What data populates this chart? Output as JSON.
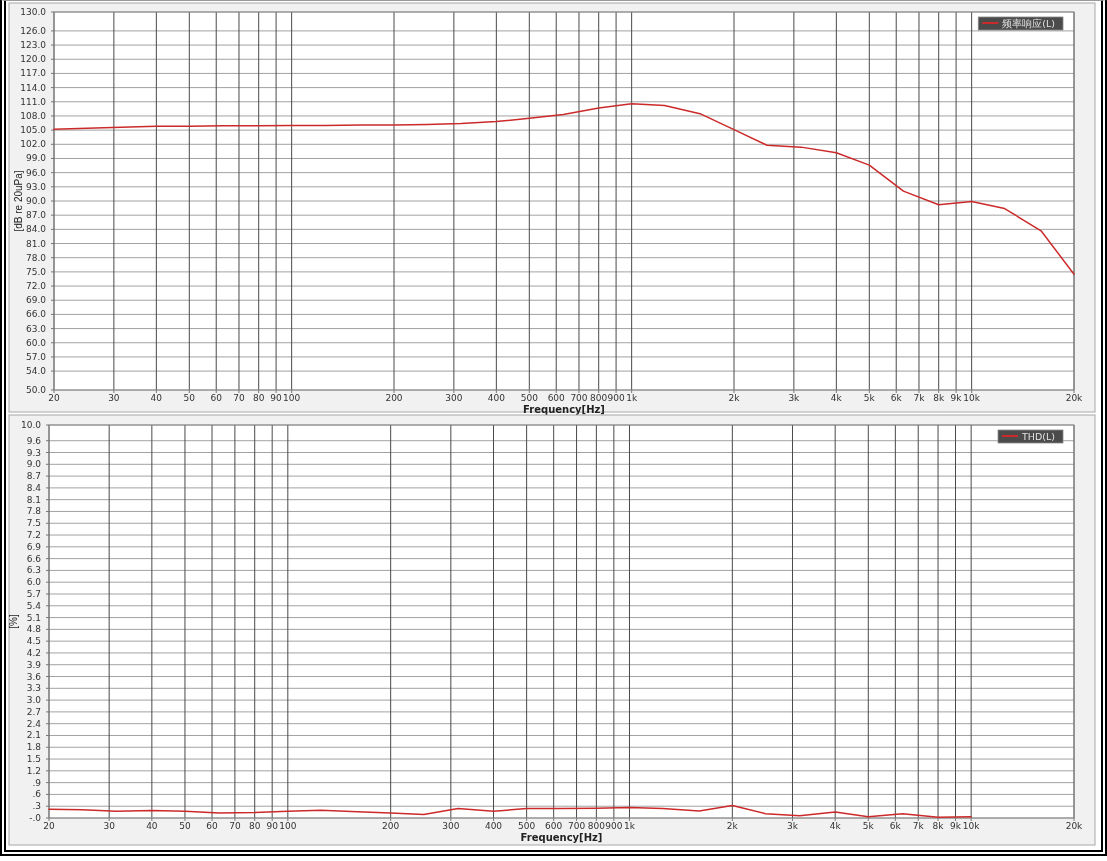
{
  "chart_data": [
    {
      "type": "line",
      "xlabel": "Frequency[Hz]",
      "ylabel": "[dB re 20uPa]",
      "log": "x",
      "grid": true,
      "legend": "top right",
      "x": [
        20,
        25,
        31.5,
        40,
        50,
        63,
        80,
        100,
        125,
        160,
        200,
        250,
        315,
        400,
        500,
        630,
        800,
        1000,
        1250,
        1600,
        2000,
        2500,
        3150,
        4000,
        5000,
        6300,
        8000,
        10000,
        12500,
        16000,
        20000
      ],
      "series": [
        {
          "name": "频率响应(L)",
          "color": "#cc2a2a",
          "values": [
            105.2,
            105.4,
            105.6,
            105.8,
            105.8,
            105.9,
            105.9,
            106.0,
            106.0,
            106.1,
            106.1,
            106.2,
            106.4,
            106.8,
            107.5,
            108.3,
            109.7,
            110.6,
            110.2,
            108.4,
            105.1,
            101.8,
            101.4,
            100.2,
            97.6,
            92.1,
            89.2,
            89.9,
            88.4,
            83.7,
            74.5
          ]
        }
      ],
      "xlim": [
        20,
        20000
      ],
      "xticks": [
        20,
        30,
        40,
        50,
        60,
        70,
        80,
        90,
        100,
        200,
        300,
        400,
        500,
        600,
        700,
        800,
        900,
        {
          "value": 1000,
          "label": "1k"
        },
        {
          "value": 2000,
          "label": "2k"
        },
        {
          "value": 3000,
          "label": "3k"
        },
        {
          "value": 4000,
          "label": "4k"
        },
        {
          "value": 5000,
          "label": "5k"
        },
        {
          "value": 6000,
          "label": "6k"
        },
        {
          "value": 7000,
          "label": "7k"
        },
        {
          "value": 8000,
          "label": "8k"
        },
        {
          "value": 9000,
          "label": "9k"
        },
        {
          "value": 10000,
          "label": "10k"
        },
        {
          "value": 20000,
          "label": "20k"
        }
      ],
      "ylim": [
        50,
        130
      ],
      "yticks": [
        {
          "value": 50,
          "label": "50.0"
        },
        {
          "value": 54,
          "label": "54.0"
        },
        {
          "value": 57,
          "label": "57.0"
        },
        {
          "value": 60,
          "label": "60.0"
        },
        {
          "value": 63,
          "label": "63.0"
        },
        {
          "value": 66,
          "label": "66.0"
        },
        {
          "value": 69,
          "label": "69.0"
        },
        {
          "value": 72,
          "label": "72.0"
        },
        {
          "value": 75,
          "label": "75.0"
        },
        {
          "value": 78,
          "label": "78.0"
        },
        {
          "value": 81,
          "label": "81.0"
        },
        {
          "value": 84,
          "label": "84.0"
        },
        {
          "value": 87,
          "label": "87.0"
        },
        {
          "value": 90,
          "label": "90.0"
        },
        {
          "value": 93,
          "label": "93.0"
        },
        {
          "value": 96,
          "label": "96.0"
        },
        {
          "value": 99,
          "label": "99.0"
        },
        {
          "value": 102,
          "label": "102.0"
        },
        {
          "value": 105,
          "label": "105.0"
        },
        {
          "value": 108,
          "label": "108.0"
        },
        {
          "value": 111,
          "label": "111.0"
        },
        {
          "value": 114,
          "label": "114.0"
        },
        {
          "value": 117,
          "label": "117.0"
        },
        {
          "value": 120,
          "label": "120.0"
        },
        {
          "value": 123,
          "label": "123.0"
        },
        {
          "value": 126,
          "label": "126.0"
        },
        {
          "value": 130,
          "label": "130.0"
        }
      ]
    },
    {
      "type": "line",
      "xlabel": "Frequency[Hz]",
      "ylabel": "[%]",
      "log": "x",
      "grid": true,
      "legend": "top right",
      "x": [
        20,
        25,
        31.5,
        40,
        50,
        63,
        80,
        100,
        125,
        160,
        200,
        250,
        315,
        400,
        500,
        630,
        800,
        1000,
        1250,
        1600,
        2000,
        2500,
        3150,
        4000,
        5000,
        6300,
        8000,
        10000
      ],
      "series": [
        {
          "name": "THD(L)",
          "color": "#cc2a2a",
          "values": [
            0.22,
            0.21,
            0.17,
            0.19,
            0.17,
            0.13,
            0.14,
            0.17,
            0.2,
            0.16,
            0.13,
            0.09,
            0.24,
            0.17,
            0.24,
            0.24,
            0.25,
            0.27,
            0.24,
            0.18,
            0.32,
            0.11,
            0.06,
            0.15,
            0.03,
            0.11,
            0.02,
            0.03
          ]
        }
      ],
      "xlim": [
        20,
        20000
      ],
      "xticks": [
        20,
        30,
        40,
        50,
        60,
        70,
        80,
        90,
        100,
        200,
        300,
        400,
        500,
        600,
        700,
        800,
        900,
        {
          "value": 1000,
          "label": "1k"
        },
        {
          "value": 2000,
          "label": "2k"
        },
        {
          "value": 3000,
          "label": "3k"
        },
        {
          "value": 4000,
          "label": "4k"
        },
        {
          "value": 5000,
          "label": "5k"
        },
        {
          "value": 6000,
          "label": "6k"
        },
        {
          "value": 7000,
          "label": "7k"
        },
        {
          "value": 8000,
          "label": "8k"
        },
        {
          "value": 9000,
          "label": "9k"
        },
        {
          "value": 10000,
          "label": "10k"
        },
        {
          "value": 20000,
          "label": "20k"
        }
      ],
      "ylim": [
        0,
        10
      ],
      "yticks": [
        {
          "value": 0,
          "label": "-.0"
        },
        {
          "value": 0.3,
          "label": ".3"
        },
        {
          "value": 0.6,
          "label": ".6"
        },
        {
          "value": 0.9,
          "label": ".9"
        },
        {
          "value": 1.2,
          "label": "1.2"
        },
        {
          "value": 1.5,
          "label": "1.5"
        },
        {
          "value": 1.8,
          "label": "1.8"
        },
        {
          "value": 2.1,
          "label": "2.1"
        },
        {
          "value": 2.4,
          "label": "2.4"
        },
        {
          "value": 2.7,
          "label": "2.7"
        },
        {
          "value": 3.0,
          "label": "3.0"
        },
        {
          "value": 3.3,
          "label": "3.3"
        },
        {
          "value": 3.6,
          "label": "3.6"
        },
        {
          "value": 3.9,
          "label": "3.9"
        },
        {
          "value": 4.2,
          "label": "4.2"
        },
        {
          "value": 4.5,
          "label": "4.5"
        },
        {
          "value": 4.8,
          "label": "4.8"
        },
        {
          "value": 5.1,
          "label": "5.1"
        },
        {
          "value": 5.4,
          "label": "5.4"
        },
        {
          "value": 5.7,
          "label": "5.7"
        },
        {
          "value": 6.0,
          "label": "6.0"
        },
        {
          "value": 6.3,
          "label": "6.3"
        },
        {
          "value": 6.6,
          "label": "6.6"
        },
        {
          "value": 6.9,
          "label": "6.9"
        },
        {
          "value": 7.2,
          "label": "7.2"
        },
        {
          "value": 7.5,
          "label": "7.5"
        },
        {
          "value": 7.8,
          "label": "7.8"
        },
        {
          "value": 8.1,
          "label": "8.1"
        },
        {
          "value": 8.4,
          "label": "8.4"
        },
        {
          "value": 8.7,
          "label": "8.7"
        },
        {
          "value": 9.0,
          "label": "9.0"
        },
        {
          "value": 9.3,
          "label": "9.3"
        },
        {
          "value": 9.6,
          "label": "9.6"
        },
        {
          "value": 10,
          "label": "10.0"
        }
      ]
    }
  ]
}
